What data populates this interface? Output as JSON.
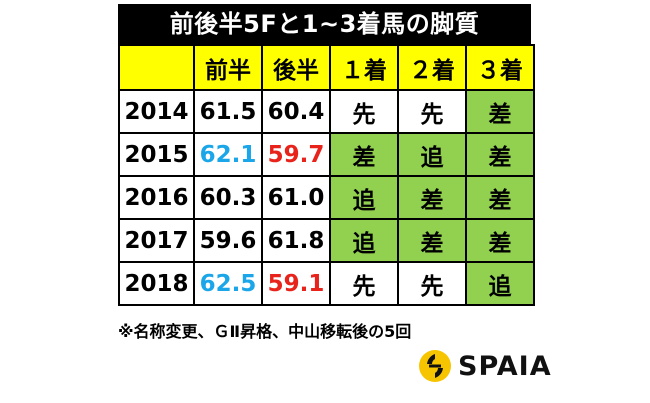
{
  "title": "前後半5Fと1~3着馬の脚質",
  "colors": {
    "title_bg": "#000000",
    "header_bg": "#ffff00",
    "green_cell": "#92d050",
    "blue_text": "#1aa6e8",
    "red_text": "#e8231b",
    "logo_yellow": "#f7c400"
  },
  "table": {
    "headers": [
      "",
      "前半",
      "後半",
      "１着",
      "２着",
      "３着"
    ],
    "rows": [
      {
        "year": "2014",
        "first": "61.5",
        "second": "60.4",
        "p1": "先",
        "p2": "先",
        "p3": "差",
        "first_color": "",
        "second_color": "",
        "green": [
          false,
          false,
          true
        ]
      },
      {
        "year": "2015",
        "first": "62.1",
        "second": "59.7",
        "p1": "差",
        "p2": "追",
        "p3": "差",
        "first_color": "blue",
        "second_color": "red",
        "green": [
          true,
          true,
          true
        ]
      },
      {
        "year": "2016",
        "first": "60.3",
        "second": "61.0",
        "p1": "追",
        "p2": "差",
        "p3": "差",
        "first_color": "",
        "second_color": "",
        "green": [
          true,
          true,
          true
        ]
      },
      {
        "year": "2017",
        "first": "59.6",
        "second": "61.8",
        "p1": "追",
        "p2": "差",
        "p3": "差",
        "first_color": "",
        "second_color": "",
        "green": [
          true,
          true,
          true
        ]
      },
      {
        "year": "2018",
        "first": "62.5",
        "second": "59.1",
        "p1": "先",
        "p2": "先",
        "p3": "追",
        "first_color": "blue",
        "second_color": "red",
        "green": [
          false,
          false,
          true
        ]
      }
    ]
  },
  "note": "※名称変更、ＧⅡ昇格、中山移転後の5回",
  "logo": {
    "icon": "spaia-logo-icon",
    "text": "SPAIA"
  }
}
